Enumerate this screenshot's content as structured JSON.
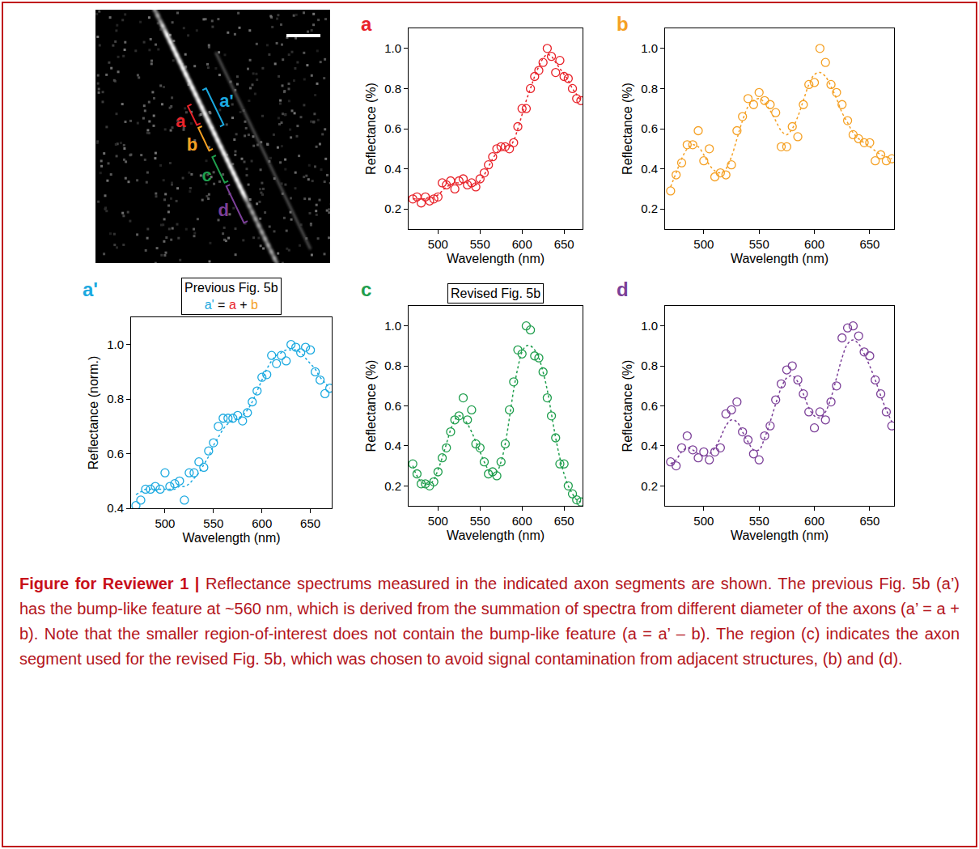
{
  "image": {
    "segments": [
      {
        "label": "a'",
        "color": "#1ba9e0"
      },
      {
        "label": "a",
        "color": "#e8232a"
      },
      {
        "label": "b",
        "color": "#f5a023"
      },
      {
        "label": "c",
        "color": "#1f9e4d"
      },
      {
        "label": "d",
        "color": "#7b3f98"
      }
    ]
  },
  "chart_data": [
    {
      "type": "scatter",
      "title": "a",
      "color": "#e8232a",
      "grid": false,
      "x_label": "Wavelength (nm)",
      "y_label": "Reflectance (%)",
      "xlim": [
        465,
        672
      ],
      "xticks": [
        500,
        550,
        600,
        650
      ],
      "ylim": [
        0.1,
        1.1
      ],
      "yticks": [
        0.2,
        0.4,
        0.6,
        0.8,
        {
          "value": 1,
          "label": "1.0"
        }
      ],
      "x": [
        470,
        475,
        480,
        485,
        490,
        495,
        500,
        505,
        510,
        515,
        520,
        525,
        530,
        535,
        540,
        545,
        550,
        555,
        560,
        565,
        570,
        575,
        580,
        585,
        590,
        595,
        600,
        605,
        610,
        615,
        620,
        625,
        630,
        635,
        640,
        645,
        650,
        655,
        660,
        665,
        670
      ],
      "series": [
        {
          "type": "scatter",
          "marker": "open circle",
          "values": [
            0.25,
            0.26,
            0.23,
            0.26,
            0.24,
            0.25,
            0.26,
            0.33,
            0.32,
            0.34,
            0.3,
            0.34,
            0.35,
            0.32,
            0.33,
            0.31,
            0.35,
            0.38,
            0.42,
            0.46,
            0.5,
            0.51,
            0.51,
            0.5,
            0.53,
            0.61,
            0.7,
            0.7,
            0.8,
            0.86,
            0.89,
            0.93,
            1.0,
            0.96,
            0.88,
            0.94,
            0.86,
            0.85,
            0.8,
            0.75,
            0.74
          ]
        },
        {
          "type": "line",
          "line_style": "dotted",
          "values": [
            0.25,
            0.25,
            0.25,
            0.25,
            0.25,
            0.26,
            0.27,
            0.29,
            0.31,
            0.32,
            0.33,
            0.33,
            0.33,
            0.33,
            0.32,
            0.32,
            0.34,
            0.37,
            0.41,
            0.45,
            0.48,
            0.5,
            0.51,
            0.51,
            0.54,
            0.6,
            0.67,
            0.74,
            0.8,
            0.86,
            0.91,
            0.95,
            0.97,
            0.96,
            0.93,
            0.9,
            0.87,
            0.84,
            0.8,
            0.77,
            0.74
          ]
        }
      ]
    },
    {
      "type": "scatter",
      "title": "b",
      "color": "#f5a023",
      "grid": false,
      "x_label": "Wavelength (nm)",
      "y_label": "Reflectance (%)",
      "xlim": [
        465,
        672
      ],
      "xticks": [
        500,
        550,
        600,
        650
      ],
      "ylim": [
        0.1,
        1.1
      ],
      "yticks": [
        0.2,
        0.4,
        0.6,
        0.8,
        {
          "value": 1,
          "label": "1.0"
        }
      ],
      "x": [
        470,
        475,
        480,
        485,
        490,
        495,
        500,
        505,
        510,
        515,
        520,
        525,
        530,
        535,
        540,
        545,
        550,
        555,
        560,
        565,
        570,
        575,
        580,
        585,
        590,
        595,
        600,
        605,
        610,
        615,
        620,
        625,
        630,
        635,
        640,
        645,
        650,
        655,
        660,
        665,
        670
      ],
      "series": [
        {
          "type": "scatter",
          "marker": "open circle",
          "values": [
            0.29,
            0.37,
            0.43,
            0.52,
            0.52,
            0.59,
            0.44,
            0.5,
            0.36,
            0.38,
            0.37,
            0.42,
            0.59,
            0.66,
            0.75,
            0.72,
            0.78,
            0.74,
            0.72,
            0.68,
            0.51,
            0.51,
            0.61,
            0.56,
            0.72,
            0.82,
            0.83,
            1.0,
            0.93,
            0.82,
            0.78,
            0.72,
            0.64,
            0.57,
            0.55,
            0.53,
            0.53,
            0.44,
            0.47,
            0.44,
            0.45
          ]
        },
        {
          "type": "line",
          "line_style": "dotted",
          "values": [
            0.31,
            0.38,
            0.45,
            0.5,
            0.52,
            0.51,
            0.47,
            0.42,
            0.39,
            0.38,
            0.4,
            0.46,
            0.55,
            0.64,
            0.71,
            0.74,
            0.75,
            0.73,
            0.69,
            0.64,
            0.59,
            0.57,
            0.6,
            0.66,
            0.74,
            0.82,
            0.87,
            0.88,
            0.86,
            0.81,
            0.75,
            0.68,
            0.63,
            0.58,
            0.55,
            0.53,
            0.51,
            0.49,
            0.47,
            0.46,
            0.45
          ]
        }
      ]
    },
    {
      "type": "scatter",
      "title": "a'",
      "color": "#1ba9e0",
      "grid": false,
      "annotations": [
        "Previous Fig. 5b",
        "a' = a + b"
      ],
      "x_label": "Wavelength (nm)",
      "y_label": "Reflectance (norm.)",
      "xlim": [
        465,
        672
      ],
      "xticks": [
        500,
        550,
        600,
        650
      ],
      "ylim": [
        0.4,
        1.1
      ],
      "yticks": [
        0.4,
        0.6,
        0.8,
        {
          "value": 1,
          "label": "1.0"
        }
      ],
      "x": [
        470,
        475,
        480,
        485,
        490,
        495,
        500,
        505,
        510,
        515,
        520,
        525,
        530,
        535,
        540,
        545,
        550,
        555,
        560,
        565,
        570,
        575,
        580,
        585,
        590,
        595,
        600,
        605,
        610,
        615,
        620,
        625,
        630,
        635,
        640,
        645,
        650,
        655,
        660,
        665,
        670
      ],
      "series": [
        {
          "type": "scatter",
          "marker": "open circle",
          "values": [
            0.41,
            0.43,
            0.47,
            0.47,
            0.48,
            0.47,
            0.53,
            0.48,
            0.49,
            0.5,
            0.43,
            0.53,
            0.53,
            0.57,
            0.55,
            0.61,
            0.64,
            0.7,
            0.73,
            0.73,
            0.73,
            0.74,
            0.72,
            0.75,
            0.79,
            0.83,
            0.88,
            0.89,
            0.96,
            0.93,
            0.96,
            0.94,
            1.0,
            0.99,
            0.97,
            0.99,
            0.98,
            0.9,
            0.87,
            0.82,
            0.84
          ]
        },
        {
          "type": "line",
          "line_style": "dotted",
          "values": [
            0.45,
            0.46,
            0.47,
            0.47,
            0.47,
            0.47,
            0.47,
            0.47,
            0.47,
            0.48,
            0.48,
            0.49,
            0.51,
            0.53,
            0.56,
            0.59,
            0.63,
            0.66,
            0.69,
            0.71,
            0.72,
            0.73,
            0.74,
            0.76,
            0.79,
            0.83,
            0.87,
            0.91,
            0.94,
            0.96,
            0.97,
            0.98,
            0.98,
            0.98,
            0.97,
            0.95,
            0.93,
            0.91,
            0.88,
            0.86,
            0.84
          ]
        }
      ]
    },
    {
      "type": "scatter",
      "title": "c",
      "color": "#1f9e4d",
      "grid": false,
      "annotations": [
        "Revised Fig. 5b"
      ],
      "x_label": "Wavelength (nm)",
      "y_label": "Reflectance (%)",
      "xlim": [
        465,
        672
      ],
      "xticks": [
        500,
        550,
        600,
        650
      ],
      "ylim": [
        0.1,
        1.1
      ],
      "yticks": [
        0.2,
        0.4,
        0.6,
        0.8,
        {
          "value": 1,
          "label": "1.0"
        }
      ],
      "x": [
        470,
        475,
        480,
        485,
        490,
        495,
        500,
        505,
        510,
        515,
        520,
        525,
        530,
        535,
        540,
        545,
        550,
        555,
        560,
        565,
        570,
        575,
        580,
        585,
        590,
        595,
        600,
        605,
        610,
        615,
        620,
        625,
        630,
        635,
        640,
        645,
        650,
        655,
        660,
        665,
        670
      ],
      "series": [
        {
          "type": "scatter",
          "marker": "open circle",
          "values": [
            0.31,
            0.26,
            0.21,
            0.21,
            0.2,
            0.22,
            0.27,
            0.34,
            0.39,
            0.47,
            0.53,
            0.55,
            0.64,
            0.53,
            0.58,
            0.41,
            0.39,
            0.32,
            0.26,
            0.27,
            0.25,
            0.32,
            0.41,
            0.58,
            0.72,
            0.88,
            0.86,
            1.0,
            0.98,
            0.85,
            0.84,
            0.77,
            0.64,
            0.55,
            0.44,
            0.31,
            0.31,
            0.2,
            0.16,
            0.13,
            0.12
          ]
        },
        {
          "type": "line",
          "line_style": "dotted",
          "values": [
            0.3,
            0.25,
            0.22,
            0.21,
            0.21,
            0.23,
            0.28,
            0.34,
            0.41,
            0.48,
            0.53,
            0.55,
            0.54,
            0.51,
            0.47,
            0.42,
            0.37,
            0.32,
            0.28,
            0.26,
            0.27,
            0.32,
            0.41,
            0.54,
            0.68,
            0.79,
            0.87,
            0.9,
            0.9,
            0.88,
            0.84,
            0.77,
            0.68,
            0.56,
            0.44,
            0.34,
            0.26,
            0.2,
            0.16,
            0.13,
            0.12
          ]
        }
      ]
    },
    {
      "type": "scatter",
      "title": "d",
      "color": "#7b3f98",
      "grid": false,
      "x_label": "Wavelength (nm)",
      "y_label": "Reflectance (%)",
      "xlim": [
        465,
        672
      ],
      "xticks": [
        500,
        550,
        600,
        650
      ],
      "ylim": [
        0.1,
        1.1
      ],
      "yticks": [
        0.2,
        0.4,
        0.6,
        0.8,
        {
          "value": 1,
          "label": "1.0"
        }
      ],
      "x": [
        470,
        475,
        480,
        485,
        490,
        495,
        500,
        505,
        510,
        515,
        520,
        525,
        530,
        535,
        540,
        545,
        550,
        555,
        560,
        565,
        570,
        575,
        580,
        585,
        590,
        595,
        600,
        605,
        610,
        615,
        620,
        625,
        630,
        635,
        640,
        645,
        650,
        655,
        660,
        665,
        670
      ],
      "series": [
        {
          "type": "scatter",
          "marker": "open circle",
          "values": [
            0.32,
            0.3,
            0.39,
            0.45,
            0.38,
            0.34,
            0.37,
            0.33,
            0.37,
            0.39,
            0.56,
            0.58,
            0.62,
            0.47,
            0.43,
            0.36,
            0.33,
            0.45,
            0.5,
            0.63,
            0.71,
            0.78,
            0.8,
            0.73,
            0.66,
            0.57,
            0.49,
            0.57,
            0.53,
            0.62,
            0.7,
            0.94,
            0.99,
            1.0,
            0.95,
            0.87,
            0.85,
            0.73,
            0.66,
            0.57,
            0.5
          ]
        },
        {
          "type": "line",
          "line_style": "dotted",
          "values": [
            0.31,
            0.33,
            0.37,
            0.39,
            0.38,
            0.36,
            0.35,
            0.36,
            0.39,
            0.44,
            0.5,
            0.53,
            0.52,
            0.47,
            0.42,
            0.38,
            0.38,
            0.44,
            0.52,
            0.61,
            0.69,
            0.74,
            0.75,
            0.72,
            0.66,
            0.59,
            0.55,
            0.54,
            0.57,
            0.64,
            0.74,
            0.84,
            0.91,
            0.93,
            0.91,
            0.86,
            0.8,
            0.73,
            0.65,
            0.58,
            0.52
          ]
        }
      ]
    }
  ],
  "caption": {
    "label": "Figure for Reviewer 1 |",
    "text": "Reflectance spectrums measured in the indicated axon segments are shown. The previous Fig. 5b (a’) has the bump-like feature at ~560 nm, which is derived from the summation of spectra from different diameter of the axons (a’ = a + b). Note that the smaller region-of-interest does not contain the bump-like feature (a = a’ – b). The region (c) indicates the axon segment used for the revised Fig. 5b, which was chosen to avoid signal contamination from adjacent structures, (b) and (d)."
  }
}
